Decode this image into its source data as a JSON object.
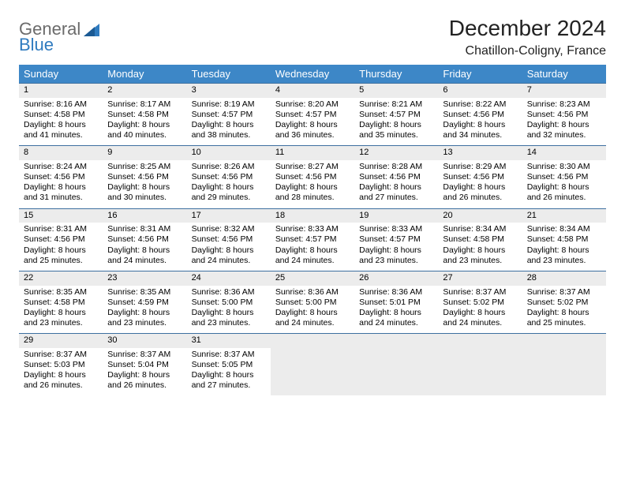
{
  "logo": {
    "text1": "General",
    "text2": "Blue"
  },
  "title": "December 2024",
  "location": "Chatillon-Coligny, France",
  "style": {
    "header_bg": "#3d87c7",
    "header_fg": "#ffffff",
    "daynum_bg": "#ececec",
    "rule_color": "#3d6fa0",
    "page_bg": "#ffffff",
    "text_color": "#000000",
    "title_fontsize": 28,
    "location_fontsize": 16,
    "header_fontsize": 13,
    "cell_fontsize": 10.5
  },
  "day_headers": [
    "Sunday",
    "Monday",
    "Tuesday",
    "Wednesday",
    "Thursday",
    "Friday",
    "Saturday"
  ],
  "weeks": [
    [
      {
        "n": "1",
        "sr": "8:16 AM",
        "ss": "4:58 PM",
        "dl": "8 hours and 41 minutes."
      },
      {
        "n": "2",
        "sr": "8:17 AM",
        "ss": "4:58 PM",
        "dl": "8 hours and 40 minutes."
      },
      {
        "n": "3",
        "sr": "8:19 AM",
        "ss": "4:57 PM",
        "dl": "8 hours and 38 minutes."
      },
      {
        "n": "4",
        "sr": "8:20 AM",
        "ss": "4:57 PM",
        "dl": "8 hours and 36 minutes."
      },
      {
        "n": "5",
        "sr": "8:21 AM",
        "ss": "4:57 PM",
        "dl": "8 hours and 35 minutes."
      },
      {
        "n": "6",
        "sr": "8:22 AM",
        "ss": "4:56 PM",
        "dl": "8 hours and 34 minutes."
      },
      {
        "n": "7",
        "sr": "8:23 AM",
        "ss": "4:56 PM",
        "dl": "8 hours and 32 minutes."
      }
    ],
    [
      {
        "n": "8",
        "sr": "8:24 AM",
        "ss": "4:56 PM",
        "dl": "8 hours and 31 minutes."
      },
      {
        "n": "9",
        "sr": "8:25 AM",
        "ss": "4:56 PM",
        "dl": "8 hours and 30 minutes."
      },
      {
        "n": "10",
        "sr": "8:26 AM",
        "ss": "4:56 PM",
        "dl": "8 hours and 29 minutes."
      },
      {
        "n": "11",
        "sr": "8:27 AM",
        "ss": "4:56 PM",
        "dl": "8 hours and 28 minutes."
      },
      {
        "n": "12",
        "sr": "8:28 AM",
        "ss": "4:56 PM",
        "dl": "8 hours and 27 minutes."
      },
      {
        "n": "13",
        "sr": "8:29 AM",
        "ss": "4:56 PM",
        "dl": "8 hours and 26 minutes."
      },
      {
        "n": "14",
        "sr": "8:30 AM",
        "ss": "4:56 PM",
        "dl": "8 hours and 26 minutes."
      }
    ],
    [
      {
        "n": "15",
        "sr": "8:31 AM",
        "ss": "4:56 PM",
        "dl": "8 hours and 25 minutes."
      },
      {
        "n": "16",
        "sr": "8:31 AM",
        "ss": "4:56 PM",
        "dl": "8 hours and 24 minutes."
      },
      {
        "n": "17",
        "sr": "8:32 AM",
        "ss": "4:56 PM",
        "dl": "8 hours and 24 minutes."
      },
      {
        "n": "18",
        "sr": "8:33 AM",
        "ss": "4:57 PM",
        "dl": "8 hours and 24 minutes."
      },
      {
        "n": "19",
        "sr": "8:33 AM",
        "ss": "4:57 PM",
        "dl": "8 hours and 23 minutes."
      },
      {
        "n": "20",
        "sr": "8:34 AM",
        "ss": "4:58 PM",
        "dl": "8 hours and 23 minutes."
      },
      {
        "n": "21",
        "sr": "8:34 AM",
        "ss": "4:58 PM",
        "dl": "8 hours and 23 minutes."
      }
    ],
    [
      {
        "n": "22",
        "sr": "8:35 AM",
        "ss": "4:58 PM",
        "dl": "8 hours and 23 minutes."
      },
      {
        "n": "23",
        "sr": "8:35 AM",
        "ss": "4:59 PM",
        "dl": "8 hours and 23 minutes."
      },
      {
        "n": "24",
        "sr": "8:36 AM",
        "ss": "5:00 PM",
        "dl": "8 hours and 23 minutes."
      },
      {
        "n": "25",
        "sr": "8:36 AM",
        "ss": "5:00 PM",
        "dl": "8 hours and 24 minutes."
      },
      {
        "n": "26",
        "sr": "8:36 AM",
        "ss": "5:01 PM",
        "dl": "8 hours and 24 minutes."
      },
      {
        "n": "27",
        "sr": "8:37 AM",
        "ss": "5:02 PM",
        "dl": "8 hours and 24 minutes."
      },
      {
        "n": "28",
        "sr": "8:37 AM",
        "ss": "5:02 PM",
        "dl": "8 hours and 25 minutes."
      }
    ],
    [
      {
        "n": "29",
        "sr": "8:37 AM",
        "ss": "5:03 PM",
        "dl": "8 hours and 26 minutes."
      },
      {
        "n": "30",
        "sr": "8:37 AM",
        "ss": "5:04 PM",
        "dl": "8 hours and 26 minutes."
      },
      {
        "n": "31",
        "sr": "8:37 AM",
        "ss": "5:05 PM",
        "dl": "8 hours and 27 minutes."
      },
      null,
      null,
      null,
      null
    ]
  ],
  "labels": {
    "sunrise": "Sunrise:",
    "sunset": "Sunset:",
    "daylight": "Daylight:"
  }
}
